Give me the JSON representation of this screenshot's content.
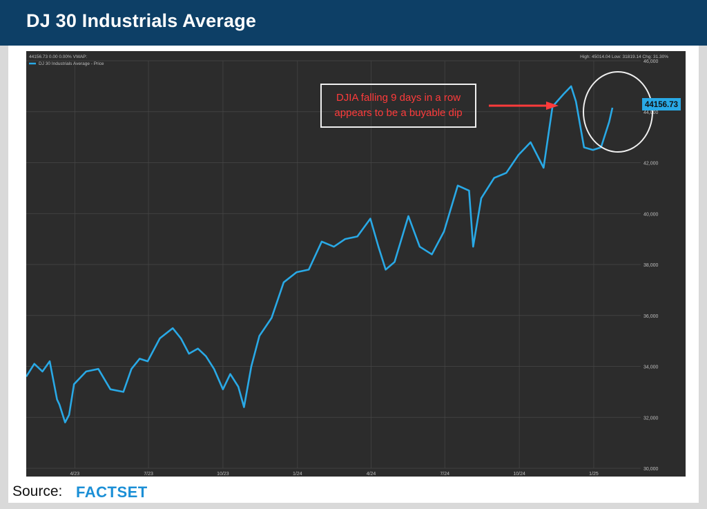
{
  "header": {
    "title": "DJ 30 Industrials Average"
  },
  "chart_meta": {
    "top_left": "44156.73 0.00 0.00%  VWAP:",
    "top_right": "High: 45014.04 Low: 31819.14 Chg: 31.30%",
    "last_price_label": "44156.73",
    "annotation_line1": "DJIA falling 9 days in a row",
    "annotation_line2": "appears to be a buyable dip"
  },
  "colors": {
    "line": "#29a9e6",
    "background": "#2c2c2c",
    "annotation_text": "#ff3b3b",
    "header": "#0d3f66"
  },
  "footer": {
    "source_label": "Source:",
    "logo_text": "FACTSET"
  },
  "chart_data": {
    "type": "line",
    "title": "",
    "xlabel": "",
    "ylabel": "",
    "x_ticks": [
      "4/23",
      "7/23",
      "10/23",
      "1/24",
      "4/24",
      "7/24",
      "10/24",
      "1/25"
    ],
    "y_ticks": [
      "30,000",
      "32,000",
      "34,000",
      "36,000",
      "38,000",
      "40,000",
      "42,000",
      "44,000",
      "46,000"
    ],
    "ylim": [
      30000,
      46000
    ],
    "grid": true,
    "legend": "top-left",
    "series": [
      {
        "name": "DJ 30 Industrials Average - Price",
        "x": [
          "2023-01-31",
          "2023-02-10",
          "2023-02-20",
          "2023-03-01",
          "2023-03-10",
          "2023-03-13",
          "2023-03-20",
          "2023-03-25",
          "2023-03-31",
          "2023-04-15",
          "2023-04-30",
          "2023-05-15",
          "2023-05-31",
          "2023-06-10",
          "2023-06-20",
          "2023-06-30",
          "2023-07-15",
          "2023-07-31",
          "2023-08-10",
          "2023-08-20",
          "2023-08-31",
          "2023-09-10",
          "2023-09-20",
          "2023-10-01",
          "2023-10-10",
          "2023-10-20",
          "2023-10-27",
          "2023-11-05",
          "2023-11-15",
          "2023-11-30",
          "2023-12-15",
          "2023-12-31",
          "2024-01-15",
          "2024-01-31",
          "2024-02-15",
          "2024-02-29",
          "2024-03-15",
          "2024-03-31",
          "2024-04-10",
          "2024-04-19",
          "2024-04-30",
          "2024-05-17",
          "2024-05-31",
          "2024-06-15",
          "2024-06-30",
          "2024-07-17",
          "2024-07-31",
          "2024-08-05",
          "2024-08-15",
          "2024-08-31",
          "2024-09-15",
          "2024-09-30",
          "2024-10-15",
          "2024-10-31",
          "2024-11-11",
          "2024-11-25",
          "2024-12-04",
          "2024-12-10",
          "2024-12-20",
          "2024-12-31",
          "2025-01-10",
          "2025-01-20",
          "2025-01-24"
        ],
        "y": [
          33600,
          34100,
          33800,
          34200,
          32700,
          32500,
          31800,
          32100,
          33300,
          33800,
          33900,
          33100,
          33000,
          33900,
          34300,
          34200,
          35100,
          35500,
          35100,
          34500,
          34700,
          34400,
          33900,
          33100,
          33700,
          33200,
          32400,
          34000,
          35200,
          35900,
          37300,
          37700,
          37800,
          38900,
          38700,
          39000,
          39100,
          39800,
          38700,
          37800,
          38100,
          39900,
          38700,
          38400,
          39300,
          41100,
          40900,
          38700,
          40600,
          41400,
          41600,
          42300,
          42800,
          41800,
          44200,
          44700,
          45000,
          44400,
          42600,
          42500,
          42600,
          43600,
          44156.73
        ]
      }
    ]
  }
}
